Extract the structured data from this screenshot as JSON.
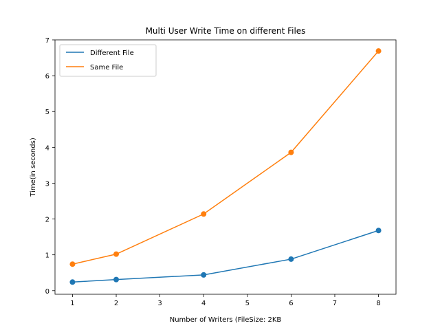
{
  "chart_data": {
    "type": "line",
    "title": "Multi User Write Time on different Files",
    "xlabel": "Number of Writers (FileSize: 2KB",
    "ylabel": "Time(in seconds)",
    "x": [
      1,
      2,
      4,
      6,
      8
    ],
    "xlim": [
      0.6,
      8.4
    ],
    "ylim": [
      -0.1,
      7.0
    ],
    "xticks": [
      1,
      2,
      3,
      4,
      5,
      6,
      7,
      8
    ],
    "yticks": [
      0,
      1,
      2,
      3,
      4,
      5,
      6,
      7
    ],
    "grid": false,
    "legend_position": "top-left",
    "series": [
      {
        "name": "Different File",
        "color": "#1f77b4",
        "values": [
          0.24,
          0.31,
          0.44,
          0.88,
          1.68
        ]
      },
      {
        "name": "Same File",
        "color": "#ff7f0e",
        "values": [
          0.74,
          1.02,
          2.14,
          3.86,
          6.69
        ]
      }
    ]
  }
}
